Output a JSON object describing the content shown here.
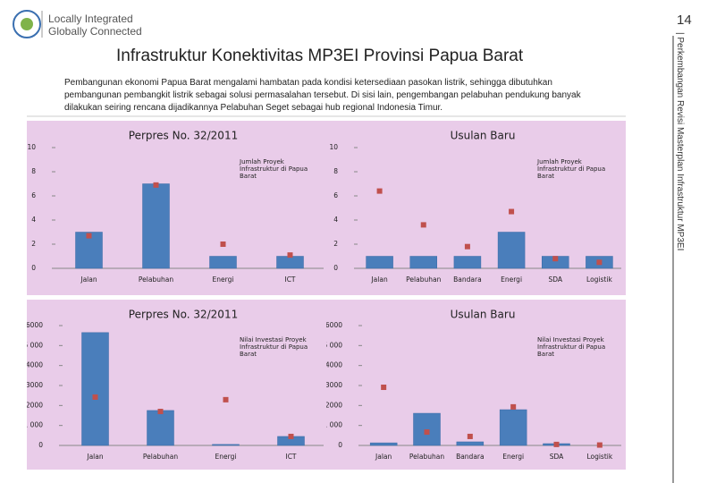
{
  "header": {
    "logo_line1": "Locally Integrated",
    "logo_line2": "Globally Connected",
    "page_number": "14",
    "side_text": "| Perkembangan Revisi Masterplan Infrastruktur MP3EI"
  },
  "title": "Infrastruktur Konektivitas MP3EI Provinsi Papua Barat",
  "body": "Pembangunan ekonomi Papua Barat mengalami hambatan pada kondisi ketersediaan pasokan listrik, sehingga dibutuhkan pembangunan pembangkit listrik sebagai solusi permasalahan tersebut. Di sisi lain, pengembangan pelabuhan pendukung banyak dilakukan seiring rencana dijadikannya Pelabuhan Seget sebagai hub regional Indonesia Timur.",
  "chart_data": [
    {
      "type": "bar",
      "title": "Perpres No. 32/2011",
      "categories": [
        "Jalan",
        "Pelabuhan",
        "Energi",
        "ICT"
      ],
      "series": [
        {
          "name": "Jumlah Proyek Infrastruktur di Papua Barat",
          "color": "#4a7ebb",
          "values": [
            3,
            7,
            1,
            1
          ]
        },
        {
          "color": "#c0504d",
          "values": [
            2.7,
            6.9,
            2,
            1.1
          ]
        }
      ],
      "ylim": [
        0,
        10
      ],
      "yticks": [
        0,
        2,
        4,
        6,
        8,
        10
      ],
      "legend": "top-right",
      "background": "#e9cce9"
    },
    {
      "type": "bar",
      "title": "Usulan Baru",
      "categories": [
        "Jalan",
        "Pelabuhan",
        "Bandara",
        "Energi",
        "SDA",
        "Logistik"
      ],
      "series": [
        {
          "name": "Jumlah Proyek Infrastruktur di Papua Barat",
          "color": "#4a7ebb",
          "values": [
            1,
            1,
            1,
            3,
            1,
            1
          ]
        },
        {
          "color": "#c0504d",
          "values": [
            6.4,
            3.6,
            1.8,
            4.7,
            0.8,
            0.5
          ]
        }
      ],
      "ylim": [
        0,
        10
      ],
      "yticks": [
        0,
        2,
        4,
        6,
        8,
        10
      ],
      "legend": "top-right",
      "background": "#e9cce9"
    },
    {
      "type": "bar",
      "title": "Perpres No. 32/2011",
      "categories": [
        "Jalan",
        "Pelabuhan",
        "Energi",
        "ICT"
      ],
      "series": [
        {
          "name": "Nilai Investasi Proyek Infrastruktur di Papua Barat",
          "color": "#4a7ebb",
          "values": [
            5650,
            1750,
            50,
            450
          ]
        },
        {
          "color": "#c0504d",
          "values": [
            2420,
            1700,
            2290,
            450
          ]
        }
      ],
      "ylim": [
        0,
        6000
      ],
      "yticks": [
        0,
        {
          "value": 1000,
          "label": "1 000"
        },
        2000,
        3000,
        4000,
        {
          "value": 5000,
          "label": "5 000"
        },
        6000
      ],
      "legend": "top-right",
      "background": "#e9cce9"
    },
    {
      "type": "bar",
      "title": "Usulan Baru",
      "categories": [
        "Jalan",
        "Pelabuhan",
        "Bandara",
        "Energi",
        "SDA",
        "Logistik"
      ],
      "series": [
        {
          "name": "Nilai Investasi Proyek Infrastruktur di Papua Barat",
          "color": "#4a7ebb",
          "values": [
            130,
            1610,
            180,
            1790,
            90,
            0
          ]
        },
        {
          "color": "#c0504d",
          "values": [
            2910,
            670,
            450,
            1930,
            50,
            20
          ]
        }
      ],
      "ylim": [
        0,
        6000
      ],
      "yticks": [
        0,
        {
          "value": 1000,
          "label": "1 000"
        },
        2000,
        3000,
        4000,
        {
          "value": 5000,
          "label": "5 000"
        },
        6000
      ],
      "legend": "top-right",
      "background": "#e9cce9"
    }
  ]
}
